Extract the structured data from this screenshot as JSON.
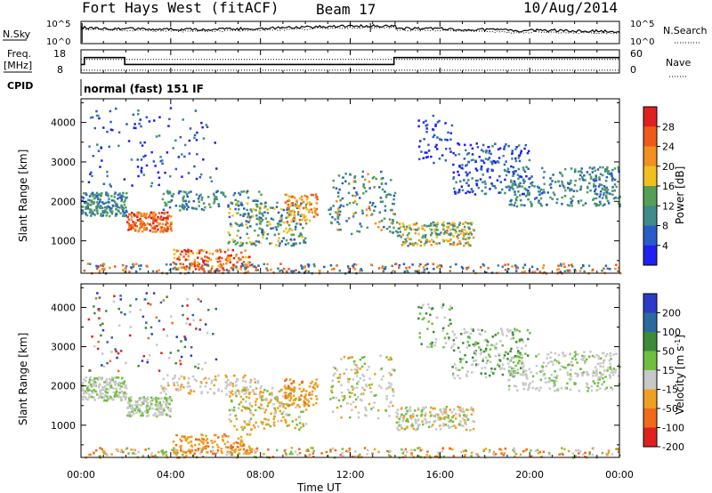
{
  "header": {
    "title": "Fort Hays West (fitACF)",
    "beam": "Beam 17",
    "date": "10/Aug/2014"
  },
  "top_panel": {
    "left_label": "N.Sky",
    "right_label": "N.Search",
    "left_ticks": [
      "10^5",
      "10^0"
    ],
    "right_ticks": [
      "10^5",
      "10^0"
    ]
  },
  "freq_panel": {
    "left_label_1": "Freq.",
    "left_label_2": "[MHz]",
    "right_label": "Nave",
    "left_ticks": [
      "18",
      "8"
    ],
    "right_ticks": [
      "60",
      "0"
    ],
    "cpid_label": "CPID",
    "cpid_value": "normal (fast) 151 IF"
  },
  "chart_data": [
    {
      "type": "heatmap",
      "name": "power",
      "ylabel": "Slant Range [km]",
      "ylim": [
        180,
        4600
      ],
      "yticks": [
        1000,
        2000,
        3000,
        4000
      ],
      "colorbar": {
        "label": "Power [dB]",
        "ticks": [
          4,
          8,
          12,
          16,
          20,
          24,
          28
        ],
        "range": [
          0,
          32
        ],
        "colors": [
          "#2020f0",
          "#2a5cc8",
          "#3f8b8a",
          "#55a055",
          "#f0c020",
          "#f29020",
          "#ef5a1a",
          "#e02020"
        ]
      }
    },
    {
      "type": "heatmap",
      "name": "velocity",
      "ylabel": "Slant Range [km]",
      "ylim": [
        180,
        4600
      ],
      "yticks": [
        1000,
        2000,
        3000,
        4000
      ],
      "colorbar": {
        "label": "Velocity [m s",
        "label_sup": "-1",
        "label_end": "]",
        "ticks": [
          200,
          100,
          50,
          15,
          -15,
          -50,
          -100,
          -200
        ],
        "colors": [
          "#2a3cc8",
          "#2a6aa0",
          "#3c8a3c",
          "#70c040",
          "#c8c8c8",
          "#f0a020",
          "#f06a1a",
          "#e02020"
        ]
      }
    }
  ],
  "time_axis": {
    "label": "Time UT",
    "ticks": [
      "00:00",
      "04:00",
      "08:00",
      "12:00",
      "16:00",
      "20:00",
      "00:00"
    ]
  }
}
